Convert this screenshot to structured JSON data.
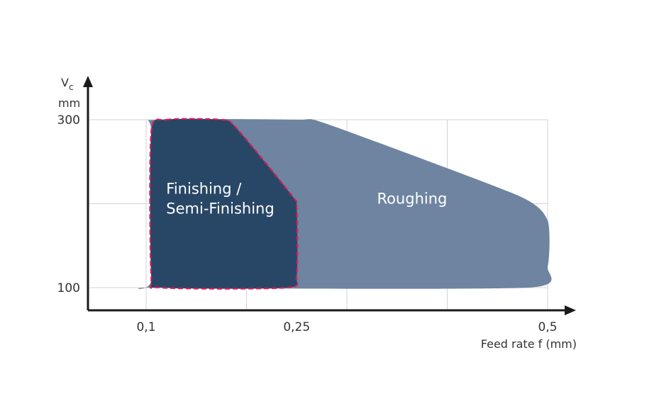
{
  "colors": {
    "roughing": "#6e84a0",
    "finishing": "#284766",
    "outline": "#e0195a",
    "grid": "#d3d3d3",
    "axis": "#1a1a1a"
  },
  "chart_data": {
    "type": "area",
    "title": "",
    "xlabel": "Feed rate f (mm)",
    "ylabel": {
      "main": "V",
      "sub": "c",
      "unit": "mm"
    },
    "xlim": [
      0.1,
      0.5
    ],
    "ylim": [
      100,
      300
    ],
    "x_ticks": [
      {
        "value": 0.1,
        "label": "0,1"
      },
      {
        "value": 0.25,
        "label": "0,25"
      },
      {
        "value": 0.5,
        "label": "0,5"
      }
    ],
    "y_ticks": [
      {
        "value": 100,
        "label": "100"
      },
      {
        "value": 300,
        "label": "300"
      }
    ],
    "grid": true,
    "regions": [
      {
        "name": "Roughing",
        "label_lines": [
          "Roughing"
        ],
        "label_at": {
          "x": 0.33,
          "y": 200
        },
        "boundary": [
          [
            0.11,
            300
          ],
          [
            0.25,
            300
          ],
          [
            0.28,
            295
          ],
          [
            0.47,
            210
          ],
          [
            0.5,
            180
          ],
          [
            0.5,
            125
          ],
          [
            0.48,
            100
          ],
          [
            0.11,
            100
          ],
          [
            0.105,
            110
          ],
          [
            0.105,
            285
          ]
        ]
      },
      {
        "name": "Finishing / Semi-Finishing",
        "label_lines": [
          "Finishing /",
          "Semi-Finishing"
        ],
        "label_at": {
          "x": 0.12,
          "y": 212
        },
        "boundary": [
          [
            0.12,
            300
          ],
          [
            0.175,
            300
          ],
          [
            0.19,
            290
          ],
          [
            0.245,
            210
          ],
          [
            0.25,
            195
          ],
          [
            0.25,
            115
          ],
          [
            0.24,
            100
          ],
          [
            0.115,
            100
          ],
          [
            0.105,
            115
          ],
          [
            0.105,
            285
          ]
        ]
      }
    ]
  }
}
